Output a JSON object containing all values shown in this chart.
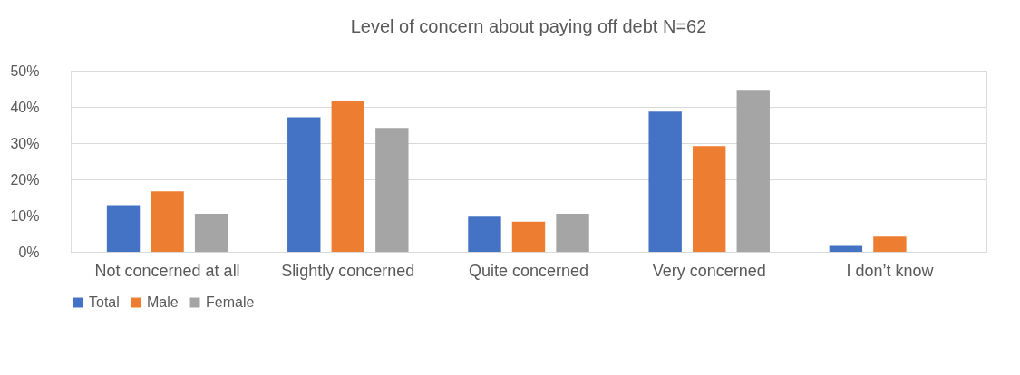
{
  "chart_data": {
    "type": "bar",
    "title": "Level of concern about paying off debt N=62",
    "categories": [
      "Not concerned at all",
      "Slightly concerned",
      "Quite concerned",
      "Very concerned",
      "I don’t know"
    ],
    "series": [
      {
        "name": "Total",
        "color": "#4472c4",
        "values": [
          12.9,
          37.1,
          9.7,
          38.7,
          1.6
        ]
      },
      {
        "name": "Male",
        "color": "#ed7d31",
        "values": [
          16.7,
          41.7,
          8.3,
          29.2,
          4.2
        ]
      },
      {
        "name": "Female",
        "color": "#a5a5a5",
        "values": [
          10.5,
          34.2,
          10.5,
          44.7,
          0
        ]
      }
    ],
    "ylim": [
      0,
      50
    ],
    "yticks": [
      {
        "value": 0,
        "label": "0%"
      },
      {
        "value": 10,
        "label": "10%"
      },
      {
        "value": 20,
        "label": "20%"
      },
      {
        "value": 30,
        "label": "30%"
      },
      {
        "value": 40,
        "label": "40%"
      },
      {
        "value": 50,
        "label": "50%"
      }
    ],
    "grid": "y",
    "legend": "bottom"
  }
}
